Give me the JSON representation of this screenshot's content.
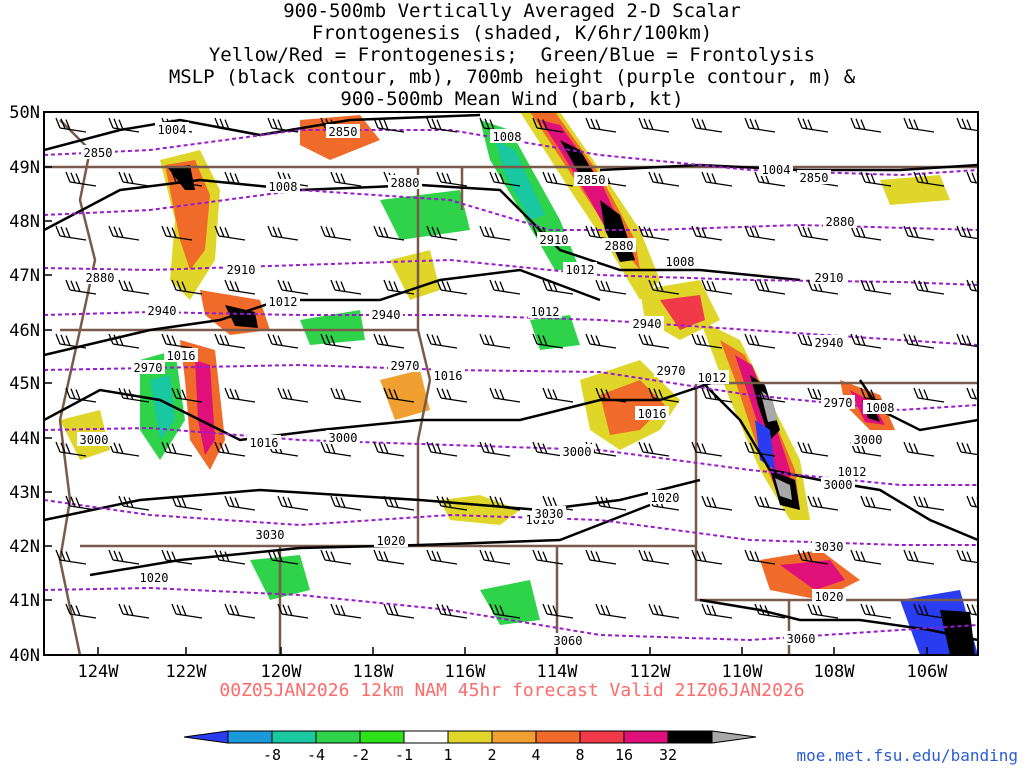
{
  "title_lines": [
    "900-500mb Vertically Averaged 2-D Scalar",
    "Frontogenesis (shaded, K/6hr/100km)",
    "Yellow/Red = Frontogenesis;  Green/Blue = Frontolysis",
    "MSLP (black contour, mb), 700mb height (purple contour, m) &",
    "900-500mb Mean Wind (barb, kt)"
  ],
  "lat_labels": [
    "50N",
    "49N",
    "48N",
    "47N",
    "46N",
    "45N",
    "44N",
    "43N",
    "42N",
    "41N",
    "40N"
  ],
  "lon_labels": [
    "124W",
    "122W",
    "120W",
    "118W",
    "116W",
    "114W",
    "112W",
    "110W",
    "108W",
    "106W"
  ],
  "footer": "00Z05JAN2026 12km NAM 45hr forecast Valid 21Z06JAN2026",
  "credit": "moe.met.fsu.edu/banding",
  "colorbar": {
    "labels": [
      "-8",
      "-4",
      "-2",
      "-1",
      "1",
      "2",
      "4",
      "8",
      "16",
      "32"
    ],
    "colors": [
      "#2a3cf0",
      "#1a9ad8",
      "#19c7a0",
      "#2ed34a",
      "#2ee21a",
      "#ffffff",
      "#e0d62a",
      "#f0a030",
      "#f06a2a",
      "#f03a4a",
      "#e0107a",
      "#000000",
      "#a8a8a8"
    ]
  },
  "mslp_labels": [
    "1004",
    "1008",
    "1004",
    "1008",
    "1012",
    "1008",
    "1012",
    "1016",
    "1016",
    "1016",
    "1012",
    "1012",
    "1020",
    "1020",
    "1020",
    "1008",
    "1020",
    "1016",
    "1012",
    "1016"
  ],
  "height_labels": [
    "2850",
    "2850",
    "2850",
    "2850",
    "2880",
    "2880",
    "2910",
    "2910",
    "2880",
    "2940",
    "2940",
    "2940",
    "2940",
    "2970",
    "2970",
    "2970",
    "2970",
    "3000",
    "3000",
    "3000",
    "3000",
    "3000",
    "3030",
    "3030",
    "3030",
    "3060",
    "3060",
    "2910",
    "2880"
  ],
  "colors": {
    "mslp": "#000000",
    "height": "#9a1ad0",
    "borders": "#7a5a4a",
    "frame": "#000000"
  }
}
